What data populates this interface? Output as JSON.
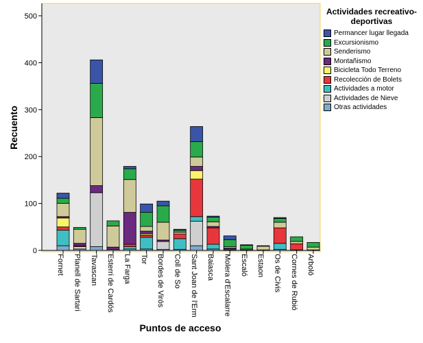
{
  "chart_data": {
    "type": "bar",
    "stacked": true,
    "title": "",
    "xlabel": "Puntos de acceso",
    "ylabel": "Recuento",
    "ylim": [
      0,
      500
    ],
    "yticks": [
      0,
      100,
      200,
      300,
      400,
      500
    ],
    "grid": false,
    "legend_position": "right",
    "legend_title": "Actividades recreativo-deportivas",
    "categories": [
      "Fornet",
      "Planell de Sartari",
      "Tavascan",
      "Esterri de Cardós",
      "La Farga",
      "Tor",
      "Bordes de Virós",
      "Coll de So",
      "Sant Joan de l'Erm",
      "Baiasca",
      "Molera d'Escalarre",
      "Escaló",
      "Estaon",
      "Os de Civis",
      "Cornes de Rubió",
      "Arboló"
    ],
    "series": [
      {
        "name": "Otras actividades",
        "color": "#7eaacb",
        "values": [
          10,
          3,
          8,
          2,
          3,
          3,
          2,
          2,
          10,
          3,
          1,
          1,
          1,
          2,
          1,
          1
        ]
      },
      {
        "name": "Actividades de Nieve",
        "color": "#cfcfcf",
        "values": [
          0,
          5,
          115,
          0,
          0,
          0,
          17,
          0,
          52,
          0,
          0,
          0,
          0,
          0,
          0,
          0
        ]
      },
      {
        "name": "Actividades a motor",
        "color": "#3fbfc4",
        "values": [
          33,
          0,
          0,
          0,
          5,
          25,
          0,
          23,
          10,
          10,
          2,
          0,
          0,
          13,
          0,
          0
        ]
      },
      {
        "name": "Recolección de Bolets",
        "color": "#e8373c",
        "values": [
          7,
          2,
          0,
          0,
          5,
          5,
          0,
          10,
          80,
          35,
          0,
          0,
          0,
          33,
          13,
          0
        ]
      },
      {
        "name": "Bicicleta Todo Terreno",
        "color": "#fbf36a",
        "values": [
          19,
          0,
          0,
          0,
          0,
          3,
          0,
          0,
          18,
          0,
          0,
          0,
          0,
          0,
          0,
          0
        ]
      },
      {
        "name": "Montañismo",
        "color": "#6a2a80",
        "values": [
          3,
          5,
          15,
          5,
          68,
          5,
          3,
          0,
          9,
          3,
          2,
          0,
          0,
          0,
          0,
          0
        ]
      },
      {
        "name": "Senderismo",
        "color": "#cfca99",
        "values": [
          28,
          30,
          145,
          45,
          70,
          10,
          38,
          4,
          20,
          10,
          3,
          2,
          8,
          12,
          5,
          6
        ]
      },
      {
        "name": "Excursionismo",
        "color": "#2aaa4a",
        "values": [
          11,
          4,
          73,
          11,
          23,
          30,
          35,
          4,
          33,
          10,
          15,
          8,
          1,
          8,
          10,
          10
        ]
      },
      {
        "name": "Permancer lugar llegada",
        "color": "#3a55a8",
        "values": [
          11,
          0,
          50,
          0,
          5,
          18,
          10,
          2,
          32,
          2,
          8,
          1,
          0,
          2,
          0,
          0
        ]
      }
    ]
  }
}
